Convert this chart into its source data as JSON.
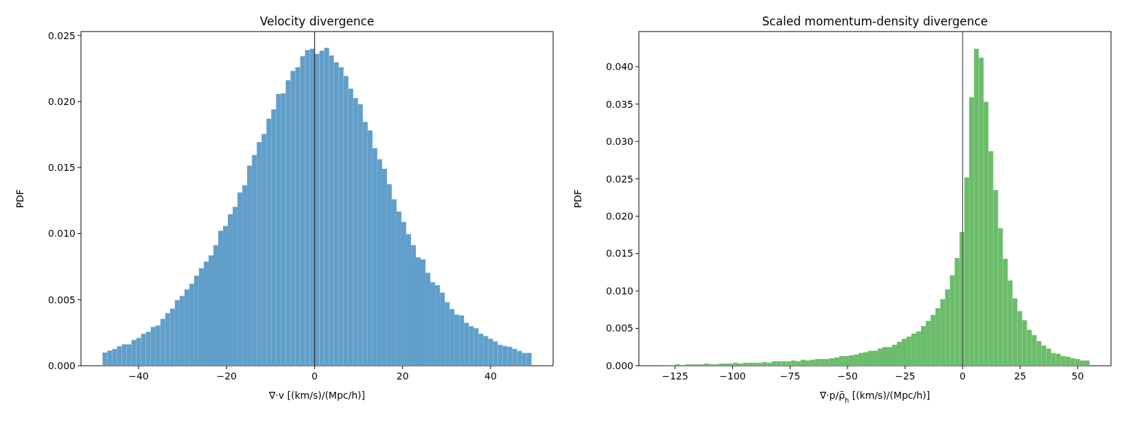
{
  "chart_data": [
    {
      "type": "histogram",
      "title": "Velocity divergence",
      "xlabel": "∇·v [(km/s)/(Mpc/h)]",
      "ylabel": "PDF",
      "color": "#619fca",
      "bins": [
        -48.2,
        -47.1,
        -46.01,
        -44.91,
        -43.82,
        -42.72,
        -41.63,
        -40.53,
        -39.44,
        -38.34,
        -37.25,
        -36.15,
        -35.05,
        -33.96,
        -32.86,
        -31.77,
        -30.67,
        -29.58,
        -28.48,
        -27.39,
        -26.29,
        -25.19,
        -24.1,
        -23.0,
        -21.91,
        -20.81,
        -19.72,
        -18.62,
        -17.53,
        -16.43,
        -15.34,
        -14.24,
        -13.14,
        -12.05,
        -10.95,
        -9.86,
        -8.76,
        -7.67,
        -6.57,
        -5.48,
        -4.38,
        -3.28,
        -2.19,
        -1.09,
        0.0,
        1.1,
        2.19,
        3.29,
        4.38,
        5.48,
        6.57,
        7.67,
        8.76,
        9.86,
        10.96,
        12.05,
        13.15,
        14.24,
        15.34,
        16.43,
        17.53,
        18.62,
        19.72,
        20.81,
        21.91,
        23.01,
        24.1,
        25.2,
        26.29,
        27.39,
        28.48,
        29.58,
        30.68,
        31.77,
        32.87,
        33.96,
        35.06,
        36.15,
        37.25,
        38.34,
        39.44,
        40.54,
        41.63,
        42.73,
        43.82,
        44.92,
        46.01,
        47.11,
        48.2,
        49.3
      ],
      "values": [
        0.001,
        0.00115,
        0.00126,
        0.00147,
        0.00162,
        0.00162,
        0.00195,
        0.0021,
        0.00242,
        0.00257,
        0.00294,
        0.00305,
        0.00355,
        0.00398,
        0.00433,
        0.00496,
        0.00528,
        0.00578,
        0.00621,
        0.00682,
        0.00738,
        0.00788,
        0.00835,
        0.00913,
        0.01022,
        0.01058,
        0.01147,
        0.01203,
        0.01312,
        0.01366,
        0.01515,
        0.01595,
        0.01693,
        0.01755,
        0.0187,
        0.01941,
        0.02058,
        0.02063,
        0.02162,
        0.02232,
        0.0226,
        0.02344,
        0.0239,
        0.024,
        0.02361,
        0.02385,
        0.02407,
        0.02349,
        0.02297,
        0.0226,
        0.02193,
        0.02098,
        0.02026,
        0.0198,
        0.01846,
        0.01781,
        0.01647,
        0.01563,
        0.01491,
        0.01375,
        0.0126,
        0.01167,
        0.01089,
        0.00996,
        0.00913,
        0.0082,
        0.00805,
        0.00704,
        0.00632,
        0.0061,
        0.00554,
        0.00481,
        0.00429,
        0.00387,
        0.00381,
        0.00325,
        0.00299,
        0.00284,
        0.00242,
        0.00225,
        0.00204,
        0.00184,
        0.00158,
        0.00149,
        0.00143,
        0.00128,
        0.00112,
        0.00097,
        0.00097
      ],
      "xlim": [
        -53.1,
        54.2
      ],
      "ylim": [
        0,
        0.0253
      ],
      "xticks": [
        {
          "value": -40,
          "label": "−40"
        },
        {
          "value": -20,
          "label": "−20"
        },
        0,
        20,
        40
      ],
      "yticks": [
        {
          "value": 0,
          "label": "0.000"
        },
        {
          "value": 0.005,
          "label": "0.005"
        },
        {
          "value": 0.01,
          "label": "0.010"
        },
        {
          "value": 0.015,
          "label": "0.015"
        },
        {
          "value": 0.02,
          "label": "0.020"
        },
        {
          "value": 0.025,
          "label": "0.025"
        }
      ],
      "ref_lines": [
        {
          "axis": "x",
          "value": 0,
          "color": "#333333"
        }
      ]
    },
    {
      "type": "histogram",
      "title": "Scaled momentum-density divergence",
      "xlabel": "∇·p/ρ̄$_{h}$ [(km/s)/(Mpc/h)]",
      "ylabel": "PDF",
      "color": "#6bbd6b",
      "bins": [
        -131.1,
        -129.01,
        -126.91,
        -124.82,
        -122.73,
        -120.64,
        -118.54,
        -116.45,
        -114.36,
        -112.26,
        -110.17,
        -108.08,
        -105.98,
        -103.89,
        -101.8,
        -99.71,
        -97.61,
        -95.52,
        -93.43,
        -91.33,
        -89.24,
        -87.15,
        -85.05,
        -82.96,
        -80.87,
        -78.78,
        -76.68,
        -74.59,
        -72.5,
        -70.4,
        -68.31,
        -66.22,
        -64.12,
        -62.03,
        -59.94,
        -57.85,
        -55.75,
        -53.66,
        -51.57,
        -49.47,
        -47.38,
        -45.29,
        -43.19,
        -41.1,
        -39.01,
        -36.92,
        -34.82,
        -32.73,
        -30.64,
        -28.54,
        -26.45,
        -24.36,
        -22.26,
        -20.17,
        -18.08,
        -15.99,
        -13.89,
        -11.8,
        -9.71,
        -7.61,
        -5.52,
        -3.43,
        -1.33,
        0.76,
        2.85,
        4.94,
        7.04,
        9.13,
        11.22,
        13.32,
        15.41,
        17.5,
        19.6,
        21.69,
        23.78,
        25.87,
        27.97,
        30.06,
        32.15,
        34.25,
        36.34,
        38.43,
        40.53,
        42.62,
        44.71,
        46.81,
        48.9,
        50.99,
        53.08,
        55.18
      ],
      "values": [
        0.0001,
        0.0001,
        0.0001,
        0.0002,
        0.0001,
        0.0002,
        0.0002,
        0.0002,
        0.0002,
        0.0003,
        0.0002,
        0.0002,
        0.0003,
        0.0003,
        0.0003,
        0.0004,
        0.0003,
        0.0004,
        0.0004,
        0.0004,
        0.0004,
        0.0005,
        0.0004,
        0.0006,
        0.0006,
        0.0006,
        0.0006,
        0.0007,
        0.0006,
        0.0008,
        0.0007,
        0.0008,
        0.0009,
        0.0009,
        0.0009,
        0.001,
        0.0011,
        0.0013,
        0.0013,
        0.0014,
        0.0015,
        0.0017,
        0.0018,
        0.002,
        0.002,
        0.0023,
        0.0025,
        0.0025,
        0.0028,
        0.0032,
        0.0036,
        0.0039,
        0.0043,
        0.0046,
        0.0053,
        0.006,
        0.0068,
        0.0077,
        0.0089,
        0.0102,
        0.0121,
        0.0144,
        0.0179,
        0.0252,
        0.0359,
        0.0424,
        0.0412,
        0.0353,
        0.0287,
        0.0235,
        0.0184,
        0.0143,
        0.0114,
        0.009,
        0.0073,
        0.0061,
        0.0048,
        0.0041,
        0.0033,
        0.0027,
        0.0023,
        0.0017,
        0.0016,
        0.0013,
        0.0012,
        0.001,
        0.0009,
        0.0007,
        0.0007
      ],
      "xlim": [
        -140.7,
        64.5
      ],
      "ylim": [
        0,
        0.0447
      ],
      "xticks": [
        {
          "value": -125,
          "label": "−125"
        },
        {
          "value": -100,
          "label": "−100"
        },
        {
          "value": -75,
          "label": "−75"
        },
        {
          "value": -50,
          "label": "−50"
        },
        {
          "value": -25,
          "label": "−25"
        },
        0,
        25,
        50
      ],
      "yticks": [
        {
          "value": 0,
          "label": "0.000"
        },
        {
          "value": 0.005,
          "label": "0.005"
        },
        {
          "value": 0.01,
          "label": "0.010"
        },
        {
          "value": 0.015,
          "label": "0.015"
        },
        {
          "value": 0.02,
          "label": "0.020"
        },
        {
          "value": 0.025,
          "label": "0.025"
        },
        {
          "value": 0.03,
          "label": "0.030"
        },
        {
          "value": 0.035,
          "label": "0.035"
        },
        {
          "value": 0.04,
          "label": "0.040"
        }
      ],
      "ref_lines": [
        {
          "axis": "x",
          "value": 0,
          "color": "#555555"
        }
      ]
    }
  ]
}
